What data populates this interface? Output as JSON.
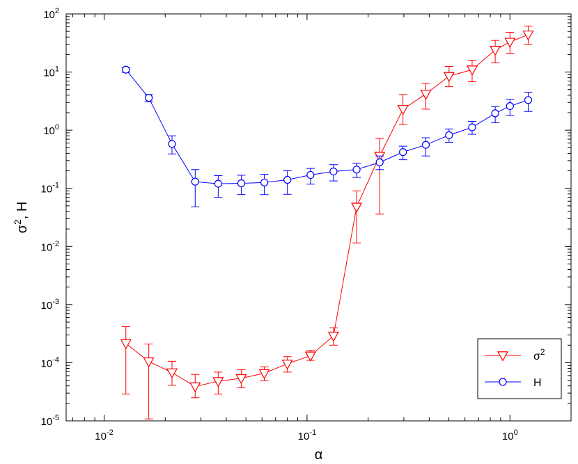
{
  "chart_data": {
    "type": "line",
    "xscale": "log",
    "yscale": "log",
    "xlim": [
      0.0065,
      2.0
    ],
    "ylim": [
      1e-05,
      100
    ],
    "xlabel": "α",
    "ylabel": "σ², H",
    "xticks": [
      {
        "value": 0.01,
        "base": "10",
        "exp": "-2"
      },
      {
        "value": 0.1,
        "base": "10",
        "exp": "-1"
      },
      {
        "value": 1,
        "base": "10",
        "exp": "0"
      }
    ],
    "yticks": [
      {
        "value": 1e-05,
        "base": "10",
        "exp": "-5"
      },
      {
        "value": 0.0001,
        "base": "10",
        "exp": "-4"
      },
      {
        "value": 0.001,
        "base": "10",
        "exp": "-3"
      },
      {
        "value": 0.01,
        "base": "10",
        "exp": "-2"
      },
      {
        "value": 0.1,
        "base": "10",
        "exp": "-1"
      },
      {
        "value": 1,
        "base": "10",
        "exp": "0"
      },
      {
        "value": 10,
        "base": "10",
        "exp": "1"
      },
      {
        "value": 100,
        "base": "10",
        "exp": "2"
      }
    ],
    "grid": false,
    "legend_position": "bottom-right",
    "series": [
      {
        "name": "σ²",
        "name_base": "σ",
        "name_sup": "2",
        "color": "#ff0000",
        "marker": "triangle-down",
        "x": [
          0.0128,
          0.0166,
          0.0216,
          0.0281,
          0.0365,
          0.0474,
          0.0616,
          0.08,
          0.104,
          0.135,
          0.1755,
          0.228,
          0.297,
          0.385,
          0.501,
          0.651,
          0.846,
          1.0,
          1.23
        ],
        "y": [
          0.000215,
          0.000105,
          6.8e-05,
          3.9e-05,
          4.8e-05,
          5.4e-05,
          6.6e-05,
          9.6e-05,
          0.000132,
          0.00029,
          0.048,
          0.36,
          2.3,
          4.2,
          8.5,
          11.0,
          24.0,
          33.0,
          44.0
        ],
        "err_low": [
          2.9e-05,
          1.08e-05,
          4.1e-05,
          2.5e-05,
          2.9e-05,
          3.7e-05,
          4.9e-05,
          6.9e-05,
          0.00011,
          0.0002,
          0.0115,
          0.036,
          1.25,
          2.3,
          5.6,
          6.8,
          14.5,
          21.0,
          30.0
        ],
        "err_high": [
          0.00042,
          0.00021,
          0.000106,
          6.3e-05,
          6.9e-05,
          7.6e-05,
          8.5e-05,
          0.000127,
          0.000162,
          0.0004,
          0.09,
          0.72,
          4.1,
          6.4,
          12.5,
          16.0,
          35.0,
          48.0,
          62.0
        ]
      },
      {
        "name": "H",
        "color": "#0000ff",
        "marker": "circle",
        "x": [
          0.0128,
          0.0166,
          0.0216,
          0.0281,
          0.0365,
          0.0474,
          0.0616,
          0.08,
          0.104,
          0.135,
          0.1755,
          0.228,
          0.297,
          0.385,
          0.501,
          0.651,
          0.846,
          1.0,
          1.23
        ],
        "y": [
          11.0,
          3.6,
          0.58,
          0.13,
          0.12,
          0.122,
          0.126,
          0.14,
          0.17,
          0.195,
          0.21,
          0.28,
          0.42,
          0.56,
          0.82,
          1.12,
          1.95,
          2.6,
          3.3
        ],
        "err_low": [
          9.9,
          3.1,
          0.39,
          0.048,
          0.07,
          0.078,
          0.078,
          0.079,
          0.118,
          0.134,
          0.154,
          0.21,
          0.31,
          0.36,
          0.62,
          0.85,
          1.34,
          1.8,
          2.1
        ],
        "err_high": [
          12.1,
          4.1,
          0.8,
          0.21,
          0.165,
          0.168,
          0.174,
          0.2,
          0.22,
          0.255,
          0.27,
          0.36,
          0.53,
          0.74,
          1.05,
          1.42,
          2.55,
          3.4,
          4.5
        ]
      }
    ]
  }
}
